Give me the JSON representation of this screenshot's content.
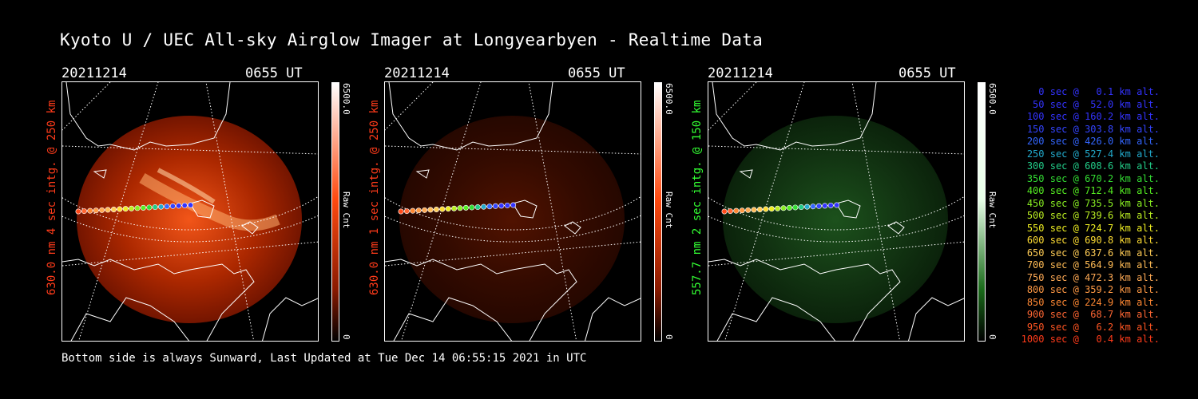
{
  "title": "Kyoto U / UEC All-sky Airglow Imager at Longyearbyen - Realtime Data",
  "panels": [
    {
      "date": "20211214",
      "time": "0655 UT",
      "label": "630.0 nm 4 sec intg. @ 250 km",
      "label_color": "#ff3b1a",
      "cbar_max": "6500.0",
      "cbar_unit": "Raw Cnt",
      "cbar_min": "0",
      "cbar_color": "#ff4a10"
    },
    {
      "date": "20211214",
      "time": "0655 UT",
      "label": "630.0 nm 1 sec intg. @ 250 km",
      "label_color": "#ff3b1a",
      "cbar_max": "6500.0",
      "cbar_unit": "Raw Cnt",
      "cbar_min": "0",
      "cbar_color": "#ff4a10"
    },
    {
      "date": "20211214",
      "time": "0655 UT",
      "label": "557.7 nm 2 sec intg. @ 150 km",
      "label_color": "#33ff33",
      "cbar_max": "6500.0",
      "cbar_unit": "Raw Cnt",
      "cbar_min": "0",
      "cbar_color": "#e8ffe8"
    }
  ],
  "legend": [
    {
      "text": "0 sec @   0.1 km alt.",
      "color": "#3333ff"
    },
    {
      "text": "50 sec @  52.0 km alt.",
      "color": "#3333ff"
    },
    {
      "text": "100 sec @ 160.2 km alt.",
      "color": "#3333ff"
    },
    {
      "text": "150 sec @ 303.8 km alt.",
      "color": "#3344ff"
    },
    {
      "text": "200 sec @ 426.0 km alt.",
      "color": "#3366ff"
    },
    {
      "text": "250 sec @ 527.4 km alt.",
      "color": "#22aacc"
    },
    {
      "text": "300 sec @ 608.6 km alt.",
      "color": "#22cc88"
    },
    {
      "text": "350 sec @ 670.2 km alt.",
      "color": "#33dd33"
    },
    {
      "text": "400 sec @ 712.4 km alt.",
      "color": "#55ee22"
    },
    {
      "text": "450 sec @ 735.5 km alt.",
      "color": "#88ee22"
    },
    {
      "text": "500 sec @ 739.6 km alt.",
      "color": "#bbee22"
    },
    {
      "text": "550 sec @ 724.7 km alt.",
      "color": "#eeee22"
    },
    {
      "text": "600 sec @ 690.8 km alt.",
      "color": "#ffdd33"
    },
    {
      "text": "650 sec @ 637.6 km alt.",
      "color": "#ffcc55"
    },
    {
      "text": "700 sec @ 564.9 km alt.",
      "color": "#ffbb55"
    },
    {
      "text": "750 sec @ 472.3 km alt.",
      "color": "#ffaa55"
    },
    {
      "text": "800 sec @ 359.2 km alt.",
      "color": "#ff9944"
    },
    {
      "text": "850 sec @ 224.9 km alt.",
      "color": "#ff8833"
    },
    {
      "text": "900 sec @  68.7 km alt.",
      "color": "#ff6633"
    },
    {
      "text": "950 sec @   6.2 km alt.",
      "color": "#ff5522"
    },
    {
      "text": "1000 sec @   0.4 km alt.",
      "color": "#ff3b1a"
    }
  ],
  "footer": "Bottom side is always Sunward, Last Updated at Tue Dec 14 06:55:15 2021 in UTC"
}
